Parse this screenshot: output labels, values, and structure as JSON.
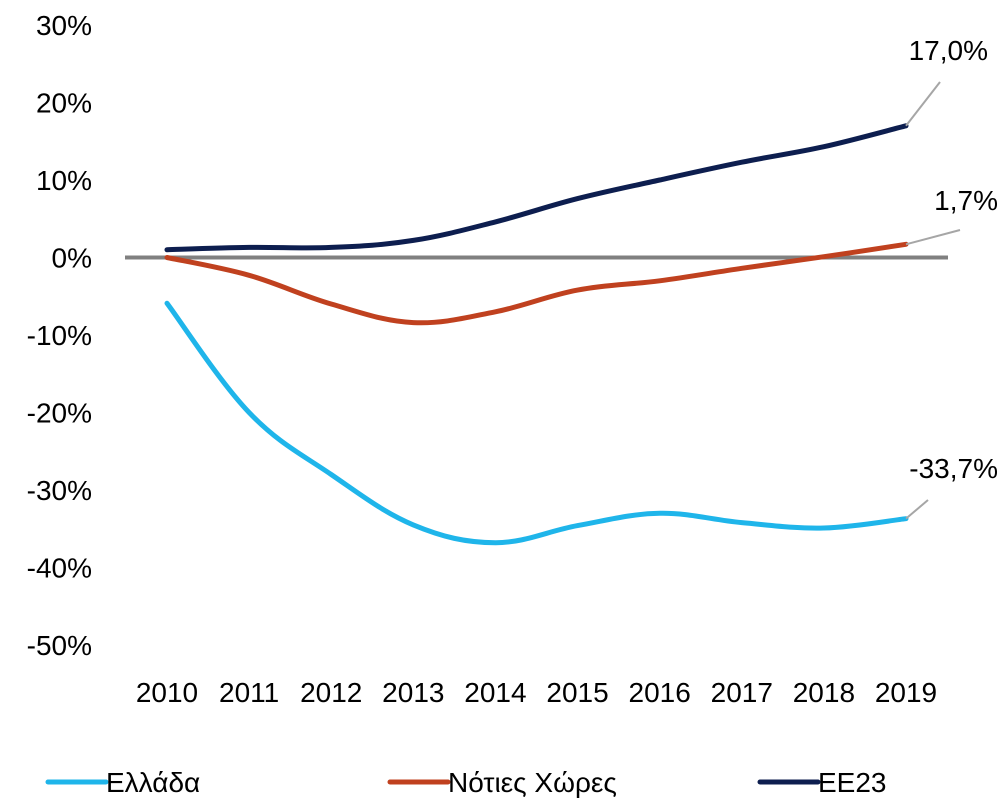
{
  "chart_data": {
    "type": "line",
    "title": "",
    "xlabel": "",
    "ylabel": "",
    "x": [
      "2010",
      "2011",
      "2012",
      "2013",
      "2014",
      "2015",
      "2016",
      "2017",
      "2018",
      "2019"
    ],
    "ylim": [
      -50,
      30
    ],
    "yticks": [
      30,
      20,
      10,
      0,
      -10,
      -20,
      -30,
      -40,
      -50
    ],
    "ytick_labels": [
      "30%",
      "20%",
      "10%",
      "0%",
      "-10%",
      "-20%",
      "-30%",
      "-40%",
      "-50%"
    ],
    "zero_line_color": "#808080",
    "legend_position": "bottom",
    "series": [
      {
        "name": "Ελλάδα",
        "color": "#1fb5ea",
        "values": [
          -5.9,
          -20.0,
          -28.0,
          -34.5,
          -36.8,
          -34.6,
          -33.0,
          -34.2,
          -34.9,
          -33.7
        ],
        "end_label": "-33,7%"
      },
      {
        "name": "Νότιες Χώρες",
        "color": "#c0411f",
        "values": [
          0.0,
          -2.3,
          -6.0,
          -8.4,
          -7.0,
          -4.2,
          -3.0,
          -1.4,
          0.1,
          1.7
        ],
        "end_label": "1,7%"
      },
      {
        "name": "ΕΕ23",
        "color": "#0d1e4f",
        "values": [
          1.0,
          1.3,
          1.3,
          2.2,
          4.6,
          7.6,
          10.0,
          12.3,
          14.3,
          17.0
        ],
        "end_label": "17,0%"
      }
    ]
  }
}
